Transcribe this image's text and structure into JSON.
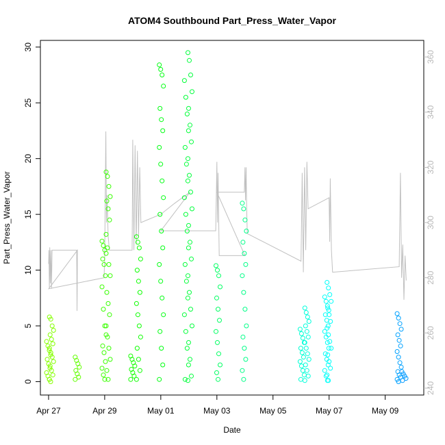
{
  "chart_data": {
    "type": "scatter",
    "title": "ATOM4 Southbound Part_Press_Water_Vapor",
    "xlabel": "Date",
    "ylabel": "Part_Press_Water_Vapor",
    "xlim": [
      "2016-04-26T17:00",
      "2016-05-10T09:00"
    ],
    "ylim": [
      -1.2,
      30.6
    ],
    "y2lim": [
      237.5,
      366.0
    ],
    "x_ticks": [
      "Apr 27",
      "Apr 29",
      "May 01",
      "May 03",
      "May 05",
      "May 07",
      "May 09"
    ],
    "x_tick_dates": [
      "2016-04-27",
      "2016-04-29",
      "2016-05-01",
      "2016-05-03",
      "2016-05-05",
      "2016-05-07",
      "2016-05-09"
    ],
    "y_ticks": [
      0,
      5,
      10,
      15,
      20,
      25,
      30
    ],
    "y2_ticks": [
      240,
      260,
      280,
      300,
      320,
      340,
      360
    ],
    "y2_tick_color": "#b8b8b8",
    "secondary_line_color": "#c0c0c0",
    "marker": "open-circle",
    "color_scale": "rainbow (yellow-green to blue over time)",
    "series": [
      {
        "values": [
          {
            "date": "2016-04-27T00:00",
            "max": 3.6,
            "pts": [
              3.6,
              3.2,
              2.8,
              2.4,
              2.0,
              1.6,
              1.2,
              0.8,
              0.5,
              0.2,
              0.0
            ]
          },
          {
            "date": "2016-04-27T02:30",
            "max": 5.8,
            "pts": [
              5.8,
              5.6,
              5.0,
              4.6,
              4.2,
              3.8,
              3.4,
              3.0,
              2.6,
              2.2,
              1.8,
              1.4,
              1.0,
              0.6,
              0.2
            ]
          },
          {
            "date": "2016-04-28T00:30",
            "max": 2.2,
            "pts": [
              2.2,
              1.9,
              1.6,
              1.3,
              1.0,
              0.7,
              0.4,
              0.2
            ]
          },
          {
            "date": "2016-04-28T23:30",
            "max": 12.6,
            "pts": [
              12.6,
              12.2,
              11.8,
              11.5,
              11.0,
              10.5,
              9.5,
              8.5,
              6.5,
              5.0,
              4.2,
              3.2,
              2.6,
              1.8,
              1.2,
              0.6,
              0.2
            ]
          },
          {
            "date": "2016-04-29T03:00",
            "max": 18.8,
            "pts": [
              18.8,
              18.4,
              17.5,
              16.6,
              16.2,
              15.5,
              14.5,
              13.2,
              12.0,
              10.5,
              9.5,
              8.0,
              7.0,
              6.0,
              5.0,
              4.0,
              3.0,
              2.0,
              1.0,
              0.2
            ]
          },
          {
            "date": "2016-04-30T00:00",
            "max": 2.3,
            "pts": [
              2.3,
              2.0,
              1.7,
              1.4,
              1.1,
              0.8,
              0.5,
              0.2
            ]
          },
          {
            "date": "2016-04-30T05:00",
            "max": 13.0,
            "pts": [
              13.0,
              12.5,
              12.0,
              11.0,
              10.0,
              9.0,
              8.0,
              7.0,
              6.0,
              5.0,
              4.0,
              3.0,
              2.0,
              1.0,
              0.2
            ]
          },
          {
            "date": "2016-05-01T00:30",
            "max": 28.4,
            "pts": [
              28.4,
              28.0,
              27.5,
              26.5,
              24.5,
              23.5,
              22.5,
              21.0,
              19.5,
              18.0,
              16.5,
              15.0,
              13.5,
              12.0,
              10.5,
              9.0,
              7.5,
              6.0,
              4.5,
              3.0,
              1.5,
              0.2
            ]
          },
          {
            "date": "2016-05-01T22:00",
            "max": 27.0,
            "pts": [
              27.0,
              25.5,
              24.0,
              22.5,
              21.0,
              19.5,
              18.0,
              16.5,
              15.0,
              13.5,
              12.0,
              10.5,
              9.0,
              7.5,
              6.0,
              4.5,
              3.0,
              1.5,
              0.2
            ]
          },
          {
            "date": "2016-05-02T01:00",
            "max": 29.5,
            "pts": [
              29.5,
              28.8,
              27.5,
              26.0,
              24.5,
              23.0,
              21.5,
              20.0,
              18.5,
              17.0,
              15.5,
              14.0,
              12.5,
              11.0,
              9.5,
              8.0,
              6.5,
              5.0,
              3.5,
              2.0,
              0.5,
              0.1
            ]
          },
          {
            "date": "2016-05-03T01:00",
            "max": 10.4,
            "pts": [
              10.4,
              10.0,
              9.5,
              8.5,
              7.5,
              6.5,
              5.5,
              4.5,
              3.5,
              2.5,
              1.5,
              0.8,
              0.2
            ]
          },
          {
            "date": "2016-05-03T23:30",
            "max": 16.0,
            "pts": [
              16.0,
              15.5,
              14.5,
              13.5,
              12.5,
              11.5,
              10.5,
              9.5,
              8.0,
              6.5,
              5.0,
              4.0,
              3.0,
              2.0,
              1.0,
              0.2
            ]
          },
          {
            "date": "2016-05-06T01:00",
            "max": 4.7,
            "pts": [
              4.7,
              4.3,
              3.9,
              3.5,
              3.0,
              2.6,
              2.2,
              1.8,
              1.4,
              1.0,
              0.6,
              0.2
            ]
          },
          {
            "date": "2016-05-06T05:00",
            "max": 6.6,
            "pts": [
              6.6,
              6.2,
              5.8,
              5.4,
              5.0,
              4.5,
              4.0,
              3.5,
              3.0,
              2.5,
              2.0,
              1.5,
              1.0,
              0.5,
              0.1
            ]
          },
          {
            "date": "2016-05-06T22:00",
            "max": 7.6,
            "pts": [
              7.6,
              7.2,
              6.8,
              6.4,
              6.0,
              5.5,
              5.0,
              4.5,
              4.0,
              3.5,
              3.0,
              2.5,
              2.0,
              1.5,
              1.0,
              0.5,
              0.1
            ]
          },
          {
            "date": "2016-05-07T00:00",
            "max": 8.9,
            "pts": [
              8.9,
              8.4,
              7.8,
              7.2,
              6.6,
              6.0,
              5.4,
              4.8,
              4.2,
              3.6,
              3.0,
              2.4,
              1.8,
              1.2,
              0.6,
              0.1
            ]
          },
          {
            "date": "2016-05-09T12:00",
            "max": 6.1,
            "pts": [
              6.1,
              5.7,
              5.2,
              4.7,
              4.2,
              3.7,
              3.2,
              2.7,
              2.2,
              1.7,
              1.3,
              0.9,
              0.6,
              0.4,
              0.2,
              0.0
            ]
          },
          {
            "date": "2016-05-09T16:00",
            "max": 0.9,
            "pts": [
              0.9,
              0.7,
              0.5,
              0.3,
              0.1
            ]
          }
        ]
      },
      {
        "axis": "right",
        "type": "line",
        "points": [
          [
            "2016-04-27T00:00",
            285
          ],
          [
            "2016-04-27T00:20",
            290
          ],
          [
            "2016-04-27T00:40",
            276
          ],
          [
            "2016-04-27T01:00",
            291
          ],
          [
            "2016-04-27T01:30",
            278
          ],
          [
            "2016-04-27T02:00",
            290
          ],
          [
            "2016-04-27T02:30",
            276
          ],
          [
            "2016-04-27T03:00",
            290
          ],
          [
            "2016-04-27T05:00",
            290
          ],
          [
            "2016-04-27T12:00",
            290
          ],
          [
            "2016-04-27T20:00",
            290
          ],
          [
            "2016-04-28T00:00",
            290
          ],
          [
            "2016-04-28T00:10",
            283
          ],
          [
            "2016-04-28T00:20",
            268
          ],
          [
            "2016-04-28T00:30",
            276
          ],
          [
            "2016-04-28T00:40",
            290
          ],
          [
            "2016-04-27T00:10",
            276
          ],
          [
            "2016-04-28T23:30",
            280
          ],
          [
            "2016-04-29T00:00",
            287
          ],
          [
            "2016-04-29T01:00",
            333
          ],
          [
            "2016-04-29T01:30",
            300
          ],
          [
            "2016-04-29T02:00",
            310
          ],
          [
            "2016-04-29T03:00",
            295
          ],
          [
            "2016-04-29T04:00",
            290
          ],
          [
            "2016-04-29T23:30",
            290
          ],
          [
            "2016-04-30T00:00",
            330
          ],
          [
            "2016-04-30T01:00",
            290
          ],
          [
            "2016-04-30T02:00",
            328
          ],
          [
            "2016-04-30T03:00",
            292
          ],
          [
            "2016-04-30T04:00",
            326
          ],
          [
            "2016-04-30T05:00",
            295
          ],
          [
            "2016-04-30T06:00",
            320
          ],
          [
            "2016-04-30T07:00",
            300
          ],
          [
            "2016-05-01T00:00",
            303
          ],
          [
            "2016-05-01T12:00",
            307
          ],
          [
            "2016-05-02T01:00",
            311
          ],
          [
            "2016-05-01T00:00",
            297
          ],
          [
            "2016-05-02T23:00",
            297
          ],
          [
            "2016-05-03T00:00",
            322
          ],
          [
            "2016-05-03T00:30",
            300
          ],
          [
            "2016-05-03T01:00",
            318
          ],
          [
            "2016-05-03T02:00",
            288
          ],
          [
            "2016-05-04T00:00",
            288
          ],
          [
            "2016-05-03T00:00",
            311
          ],
          [
            "2016-05-03T23:30",
            311
          ],
          [
            "2016-05-04T00:00",
            320
          ],
          [
            "2016-05-04T00:30",
            308
          ],
          [
            "2016-05-04T01:00",
            320
          ],
          [
            "2016-05-04T01:30",
            305
          ],
          [
            "2016-05-04T02:00",
            296
          ],
          [
            "2016-05-06T00:00",
            286
          ],
          [
            "2016-05-06T01:00",
            318
          ],
          [
            "2016-05-06T02:00",
            282
          ],
          [
            "2016-05-06T03:00",
            320
          ],
          [
            "2016-05-06T04:00",
            290
          ],
          [
            "2016-05-06T05:00",
            322
          ],
          [
            "2016-05-06T06:00",
            305
          ],
          [
            "2016-05-07T00:00",
            309
          ],
          [
            "2016-05-07T00:30",
            293
          ],
          [
            "2016-05-07T01:00",
            316
          ],
          [
            "2016-05-07T02:00",
            290
          ],
          [
            "2016-05-07T03:00",
            282
          ],
          [
            "2016-05-09T12:00",
            284
          ],
          [
            "2016-05-09T13:00",
            318
          ],
          [
            "2016-05-09T14:00",
            280
          ],
          [
            "2016-05-09T15:00",
            292
          ],
          [
            "2016-05-09T16:00",
            272
          ],
          [
            "2016-05-09T17:00",
            288
          ],
          [
            "2016-05-09T18:00",
            279
          ]
        ]
      }
    ]
  }
}
